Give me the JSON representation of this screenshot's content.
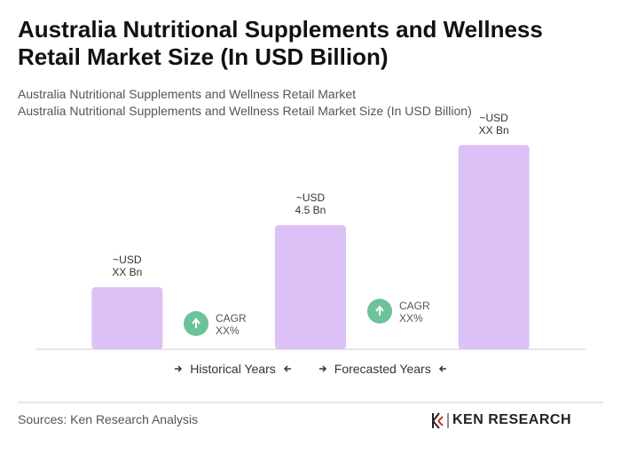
{
  "chart_data": {
    "type": "bar",
    "title": "Australia Nutritional Supplements and Wellness Retail Market Size (In USD Billion)",
    "subtitle": [
      "Australia Nutritional Supplements and Wellness Retail Market",
      "Australia Nutritional Supplements and Wellness Retail Market Size (In USD Billion)"
    ],
    "categories": [
      null,
      null,
      null
    ],
    "values": [
      2.25,
      4.5,
      7.4
    ],
    "value_labels": [
      "~USD\nXX Bn",
      "~USD\n4.5 Bn",
      "~USD\nXX Bn"
    ],
    "color": "#dcc1f6",
    "ylim": [
      0,
      8
    ],
    "annotations": [
      "CAGR\nXX%",
      "CAGR\nXX%"
    ],
    "legend": [
      "Historical Years",
      "Forecasted Years"
    ]
  },
  "source": "Sources: Ken Research Analysis",
  "logo": "KEN RESEARCH"
}
